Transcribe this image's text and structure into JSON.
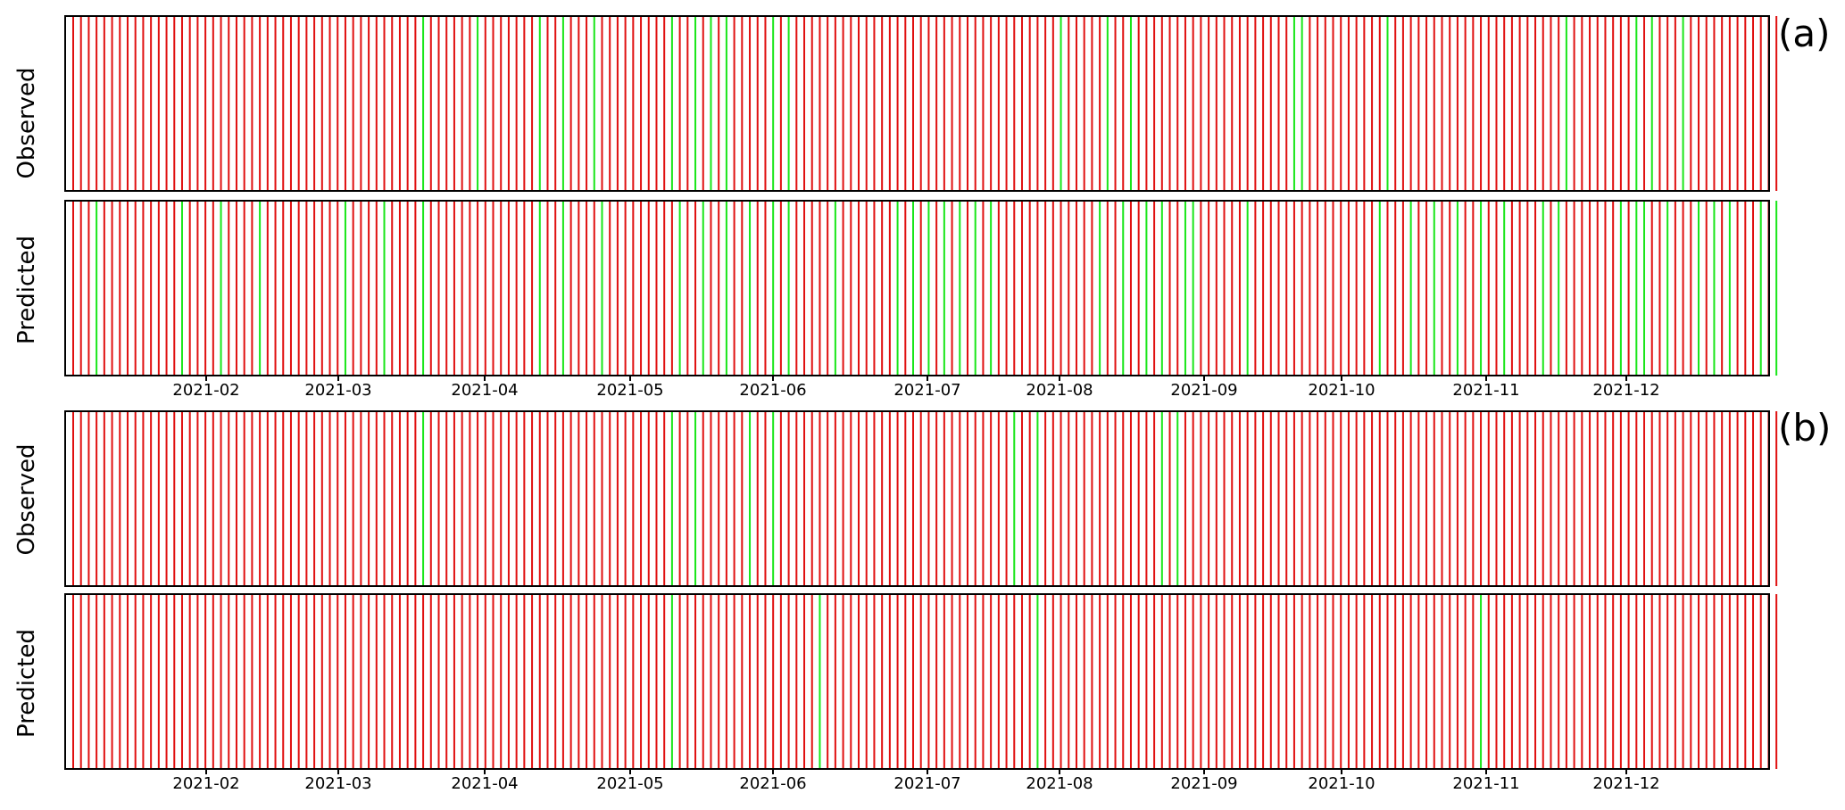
{
  "chart_data": [
    {
      "type": "event-strip",
      "panel_label": "(a)",
      "x_ticks": [
        "2021-02",
        "2021-03",
        "2021-04",
        "2021-05",
        "2021-06",
        "2021-07",
        "2021-08",
        "2021-09",
        "2021-10",
        "2021-11",
        "2021-12"
      ],
      "colors": {
        "negative": "#e01010",
        "positive": "#19e619"
      },
      "series": [
        {
          "name": "Observed",
          "green": [
            45,
            52,
            60,
            63,
            67,
            77,
            80,
            82,
            84,
            90,
            92,
            127,
            133,
            136,
            157,
            158,
            169,
            192,
            192,
            201,
            203,
            207
          ]
        },
        {
          "name": "Predicted",
          "green": [
            3,
            14,
            19,
            24,
            35,
            40,
            45,
            60,
            63,
            68,
            78,
            81,
            84,
            87,
            90,
            92,
            98,
            106,
            108,
            110,
            112,
            114,
            116,
            118,
            132,
            135,
            138,
            140,
            143,
            144,
            151,
            168,
            172,
            175,
            178,
            181,
            184,
            189,
            191,
            199,
            201,
            202,
            205,
            209,
            211,
            213,
            217,
            219
          ]
        }
      ]
    },
    {
      "type": "event-strip",
      "panel_label": "(b)",
      "x_ticks": [
        "2021-02",
        "2021-03",
        "2021-04",
        "2021-05",
        "2021-06",
        "2021-07",
        "2021-08",
        "2021-09",
        "2021-10",
        "2021-11",
        "2021-12"
      ],
      "colors": {
        "negative": "#e01010",
        "positive": "#19e619"
      },
      "series": [
        {
          "name": "Observed",
          "green": [
            45,
            77,
            80,
            87,
            90,
            121,
            124,
            140,
            142
          ]
        },
        {
          "name": "Predicted",
          "green": [
            77,
            96,
            124,
            181
          ]
        }
      ]
    }
  ]
}
